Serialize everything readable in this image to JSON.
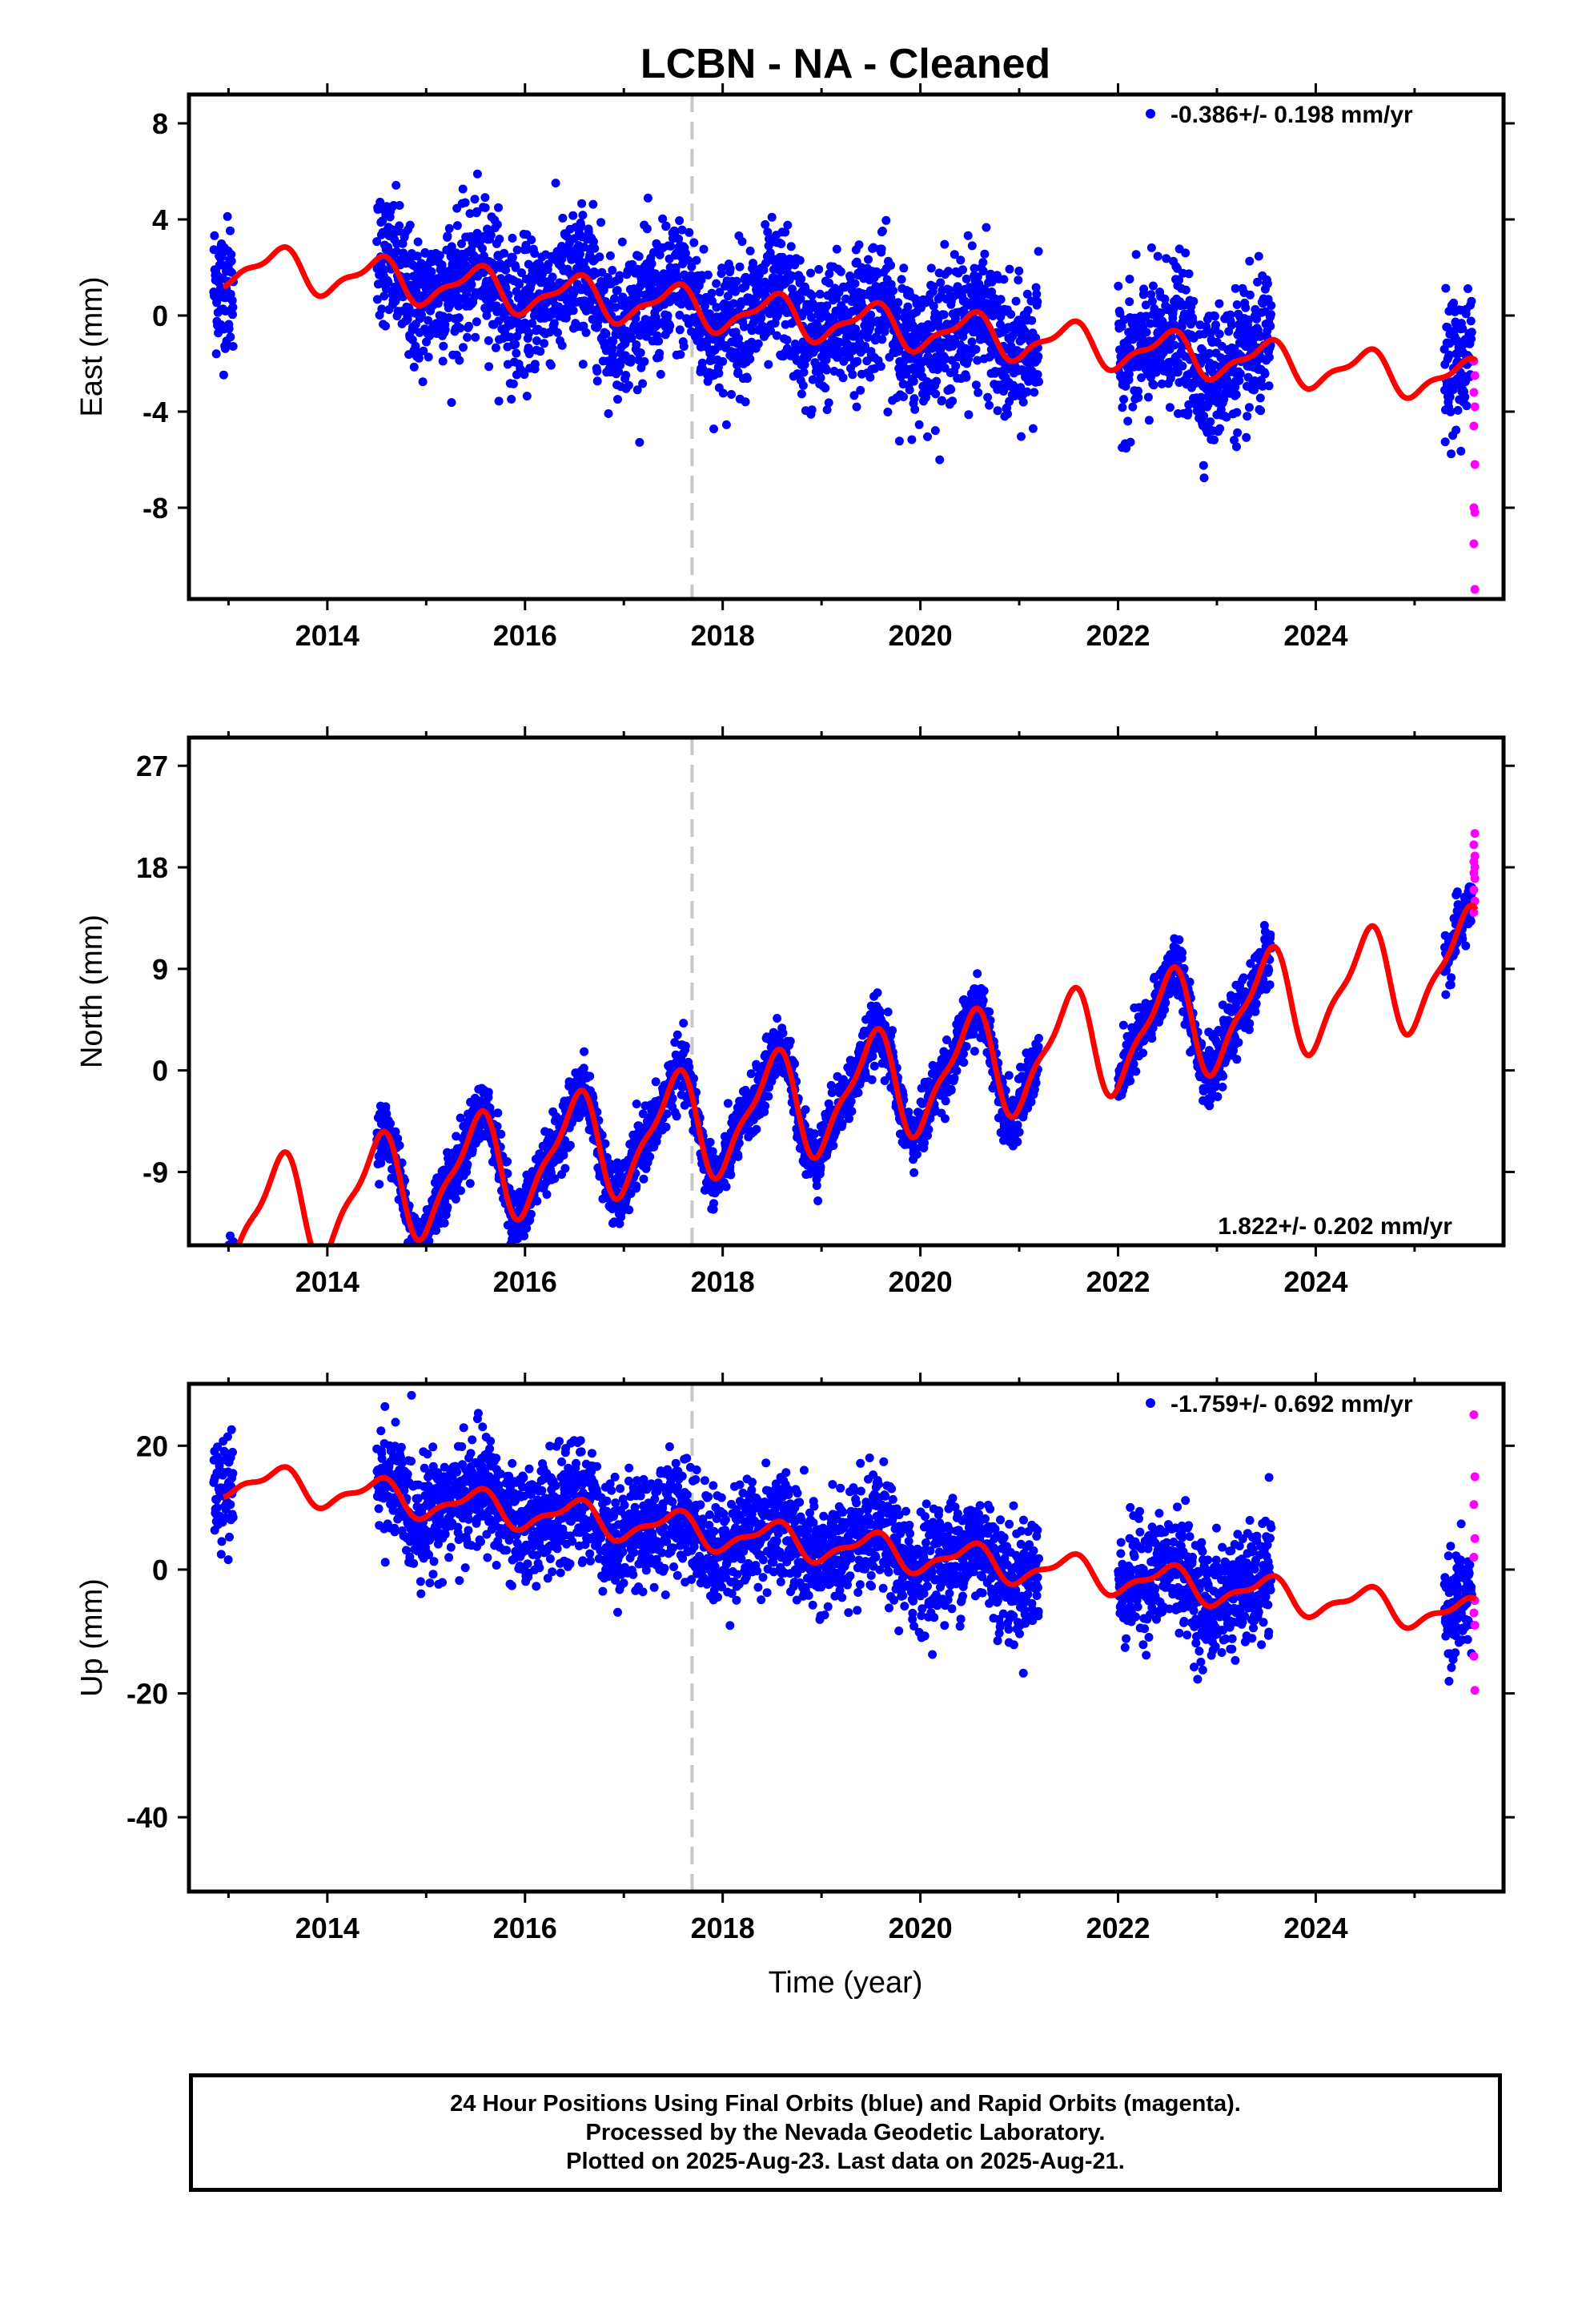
{
  "title": "LCBN  - NA - Cleaned",
  "x_axis_label": "Time (year)",
  "footer": {
    "line1": "24 Hour Positions Using Final Orbits (blue) and Rapid Orbits (magenta).",
    "line2": "Processed by the Nevada Geodetic Laboratory.",
    "line3": "Plotted on 2025-Aug-23. Last data on 2025-Aug-21."
  },
  "colors": {
    "final_orbits": "#0000ff",
    "rapid_orbits": "#ff00ff",
    "model_fit": "#ff0000",
    "marker_line": "#c8c8c8"
  },
  "chart_data": [
    {
      "type": "scatter",
      "panel": "East",
      "ylabel": "East (mm)",
      "rate_text": "-0.386+/- 0.198 mm/yr",
      "rate_position": "top-right",
      "xlim": [
        2012.6,
        2025.9
      ],
      "ylim": [
        -11.8,
        9.2
      ],
      "xticks": [
        2014,
        2016,
        2018,
        2020,
        2022,
        2024
      ],
      "xtick_labels": [
        "2014",
        "2016",
        "2018",
        "2020",
        "2022",
        "2024"
      ],
      "yticks": [
        8,
        4,
        0,
        -4,
        -8
      ],
      "ytick_labels": [
        "8",
        "4",
        "0",
        "-4",
        "-8"
      ],
      "grid": false,
      "dashed_vertical_at": 2017.69,
      "data_gaps": [
        [
          2013.05,
          2014.5
        ],
        [
          2021.2,
          2022.0
        ],
        [
          2023.55,
          2025.3
        ]
      ],
      "model": {
        "offset": -0.2,
        "rate": -0.386,
        "annual_amp": 0.8,
        "semiannual_amp": 0.3,
        "jump_at": 2017.69,
        "jump": 0.0
      },
      "noise": 1.4,
      "rapid_orbit_values": [
        -1.9,
        -2.5,
        -3.2,
        -3.8,
        -4.6,
        -6.2,
        -8.0,
        -8.2,
        -9.5,
        -11.4
      ]
    },
    {
      "type": "scatter",
      "panel": "North",
      "ylabel": "North (mm)",
      "rate_text": "1.822+/- 0.202 mm/yr",
      "rate_position": "bottom-right",
      "xlim": [
        2012.6,
        2025.9
      ],
      "ylim": [
        -15.5,
        29.5
      ],
      "xticks": [
        2014,
        2016,
        2018,
        2020,
        2022,
        2024
      ],
      "xtick_labels": [
        "2014",
        "2016",
        "2018",
        "2020",
        "2022",
        "2024"
      ],
      "yticks": [
        27,
        18,
        9,
        0,
        -9
      ],
      "ytick_labels": [
        "27",
        "18",
        "9",
        "0",
        "-9"
      ],
      "grid": false,
      "dashed_vertical_at": 2017.69,
      "data_gaps": [
        [
          2013.05,
          2014.5
        ],
        [
          2021.2,
          2022.0
        ],
        [
          2023.55,
          2025.3
        ]
      ],
      "model": {
        "offset": -2.5,
        "rate": 1.822,
        "annual_amp": 4.5,
        "semiannual_amp": 1.4,
        "jump_at": 2017.69,
        "jump": 0.0
      },
      "noise": 1.3,
      "rapid_orbit_values": [
        14.0,
        15.0,
        16.0,
        17.0,
        17.5,
        18.0,
        18.5,
        19.0,
        20.0,
        21.0
      ]
    },
    {
      "type": "scatter",
      "panel": "Up",
      "ylabel": "Up (mm)",
      "rate_text": "-1.759+/- 0.692 mm/yr",
      "rate_position": "top-right",
      "xlim": [
        2012.6,
        2025.9
      ],
      "ylim": [
        -52,
        30
      ],
      "xticks": [
        2014,
        2016,
        2018,
        2020,
        2022,
        2024
      ],
      "xtick_labels": [
        "2014",
        "2016",
        "2018",
        "2020",
        "2022",
        "2024"
      ],
      "yticks": [
        20,
        0,
        -20,
        -40
      ],
      "ytick_labels": [
        "20",
        "0",
        "-20",
        "-40"
      ],
      "grid": false,
      "dashed_vertical_at": 2017.69,
      "data_gaps": [
        [
          2013.05,
          2014.5
        ],
        [
          2021.2,
          2022.0
        ],
        [
          2023.55,
          2025.3
        ]
      ],
      "model": {
        "offset": 4.0,
        "rate": -1.759,
        "annual_amp": 2.5,
        "semiannual_amp": 1.0,
        "jump_at": 2017.69,
        "jump": 0.0
      },
      "noise": 4.5,
      "rapid_orbit_values": [
        25.0,
        15.0,
        10.5,
        5.0,
        2.0,
        -5.0,
        -7.0,
        -9.0,
        -14.0,
        -19.5
      ]
    }
  ]
}
